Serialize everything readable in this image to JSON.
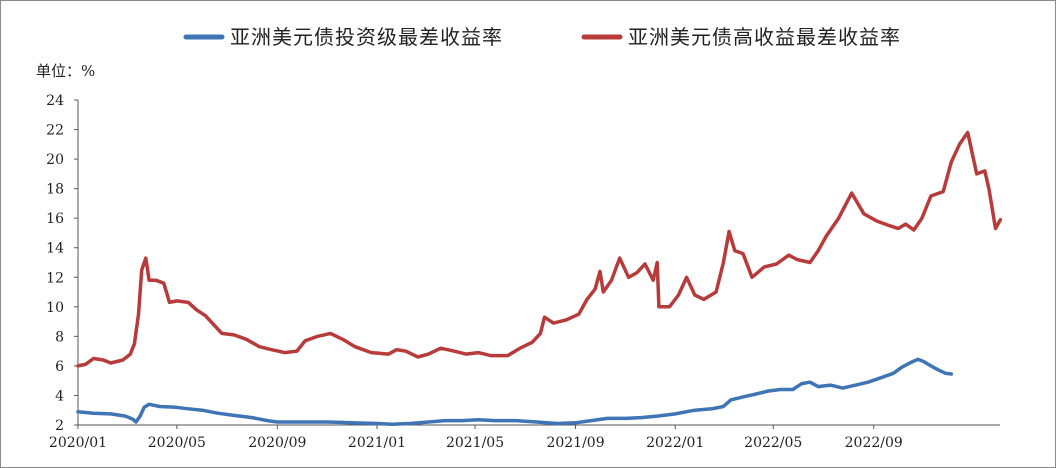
{
  "chart_data": {
    "type": "line",
    "ylabel": "单位：%",
    "ylim": [
      2,
      24
    ],
    "yticks": [
      2,
      4,
      6,
      8,
      10,
      12,
      14,
      16,
      18,
      20,
      22,
      24
    ],
    "xlim": [
      "2020/01",
      "2022/12"
    ],
    "xticks": [
      "2020/01",
      "2020/05",
      "2020/09",
      "2021/01",
      "2021/05",
      "2021/09",
      "2022/01",
      "2022/05",
      "2022/09"
    ],
    "grid": false,
    "legend_position": "top",
    "series": [
      {
        "name": "亚洲美元债投资级最差收益率",
        "color": "#3f74b5",
        "points": [
          [
            "2020/01/01",
            2.9
          ],
          [
            "2020/01/20",
            2.8
          ],
          [
            "2020/02/10",
            2.75
          ],
          [
            "2020/02/28",
            2.6
          ],
          [
            "2020/03/08",
            2.4
          ],
          [
            "2020/03/12",
            2.2
          ],
          [
            "2020/03/17",
            2.6
          ],
          [
            "2020/03/22",
            3.2
          ],
          [
            "2020/03/28",
            3.4
          ],
          [
            "2020/04/10",
            3.25
          ],
          [
            "2020/04/30",
            3.2
          ],
          [
            "2020/05/15",
            3.1
          ],
          [
            "2020/06/01",
            3.0
          ],
          [
            "2020/06/20",
            2.8
          ],
          [
            "2020/07/10",
            2.65
          ],
          [
            "2020/08/01",
            2.5
          ],
          [
            "2020/08/20",
            2.3
          ],
          [
            "2020/09/01",
            2.2
          ],
          [
            "2020/09/20",
            2.2
          ],
          [
            "2020/10/10",
            2.2
          ],
          [
            "2020/11/01",
            2.2
          ],
          [
            "2020/12/01",
            2.15
          ],
          [
            "2021/01/01",
            2.1
          ],
          [
            "2021/01/20",
            2.05
          ],
          [
            "2021/02/10",
            2.1
          ],
          [
            "2021/03/05",
            2.2
          ],
          [
            "2021/03/25",
            2.3
          ],
          [
            "2021/04/15",
            2.3
          ],
          [
            "2021/05/05",
            2.35
          ],
          [
            "2021/05/25",
            2.3
          ],
          [
            "2021/06/20",
            2.3
          ],
          [
            "2021/07/15",
            2.2
          ],
          [
            "2021/08/10",
            2.1
          ],
          [
            "2021/09/01",
            2.15
          ],
          [
            "2021/09/20",
            2.3
          ],
          [
            "2021/10/10",
            2.45
          ],
          [
            "2021/11/01",
            2.45
          ],
          [
            "2021/11/20",
            2.5
          ],
          [
            "2021/12/10",
            2.6
          ],
          [
            "2022/01/01",
            2.75
          ],
          [
            "2022/01/25",
            3.0
          ],
          [
            "2022/02/15",
            3.1
          ],
          [
            "2022/03/01",
            3.25
          ],
          [
            "2022/03/10",
            3.7
          ],
          [
            "2022/03/25",
            3.9
          ],
          [
            "2022/04/10",
            4.1
          ],
          [
            "2022/04/25",
            4.3
          ],
          [
            "2022/05/10",
            4.4
          ],
          [
            "2022/05/25",
            4.4
          ],
          [
            "2022/06/05",
            4.8
          ],
          [
            "2022/06/15",
            4.9
          ],
          [
            "2022/06/25",
            4.6
          ],
          [
            "2022/07/10",
            4.7
          ],
          [
            "2022/07/25",
            4.5
          ],
          [
            "2022/08/10",
            4.7
          ],
          [
            "2022/08/25",
            4.9
          ],
          [
            "2022/09/10",
            5.2
          ],
          [
            "2022/09/25",
            5.5
          ],
          [
            "2022/10/05",
            5.9
          ],
          [
            "2022/10/15",
            6.2
          ],
          [
            "2022/10/25",
            6.45
          ],
          [
            "2022/11/01",
            6.3
          ],
          [
            "2022/11/10",
            6.0
          ],
          [
            "2022/11/20",
            5.7
          ],
          [
            "2022/11/28",
            5.5
          ],
          [
            "2022/12/05",
            5.45
          ]
        ]
      },
      {
        "name": "亚洲美元债高收益最差收益率",
        "color": "#b83b3b",
        "points": [
          [
            "2020/01/01",
            6.0
          ],
          [
            "2020/01/10",
            6.1
          ],
          [
            "2020/01/20",
            6.5
          ],
          [
            "2020/02/01",
            6.4
          ],
          [
            "2020/02/10",
            6.2
          ],
          [
            "2020/02/25",
            6.4
          ],
          [
            "2020/03/05",
            6.8
          ],
          [
            "2020/03/10",
            7.5
          ],
          [
            "2020/03/15",
            9.5
          ],
          [
            "2020/03/19",
            12.5
          ],
          [
            "2020/03/24",
            13.3
          ],
          [
            "2020/03/28",
            11.8
          ],
          [
            "2020/04/05",
            11.8
          ],
          [
            "2020/04/15",
            11.6
          ],
          [
            "2020/04/22",
            10.3
          ],
          [
            "2020/05/01",
            10.4
          ],
          [
            "2020/05/15",
            10.3
          ],
          [
            "2020/05/25",
            9.8
          ],
          [
            "2020/06/05",
            9.4
          ],
          [
            "2020/06/15",
            8.8
          ],
          [
            "2020/06/25",
            8.2
          ],
          [
            "2020/07/10",
            8.1
          ],
          [
            "2020/07/25",
            7.8
          ],
          [
            "2020/08/10",
            7.3
          ],
          [
            "2020/08/25",
            7.1
          ],
          [
            "2020/09/10",
            6.9
          ],
          [
            "2020/09/25",
            7.0
          ],
          [
            "2020/10/05",
            7.7
          ],
          [
            "2020/10/20",
            8.0
          ],
          [
            "2020/11/05",
            8.2
          ],
          [
            "2020/11/20",
            7.8
          ],
          [
            "2020/12/05",
            7.3
          ],
          [
            "2020/12/25",
            6.9
          ],
          [
            "2021/01/15",
            6.8
          ],
          [
            "2021/01/25",
            7.1
          ],
          [
            "2021/02/05",
            7.0
          ],
          [
            "2021/02/20",
            6.6
          ],
          [
            "2021/03/05",
            6.8
          ],
          [
            "2021/03/20",
            7.2
          ],
          [
            "2021/04/05",
            7.0
          ],
          [
            "2021/04/20",
            6.8
          ],
          [
            "2021/05/05",
            6.9
          ],
          [
            "2021/05/20",
            6.7
          ],
          [
            "2021/06/10",
            6.7
          ],
          [
            "2021/06/25",
            7.2
          ],
          [
            "2021/07/10",
            7.6
          ],
          [
            "2021/07/20",
            8.2
          ],
          [
            "2021/07/25",
            9.3
          ],
          [
            "2021/08/05",
            8.9
          ],
          [
            "2021/08/20",
            9.1
          ],
          [
            "2021/09/05",
            9.5
          ],
          [
            "2021/09/15",
            10.5
          ],
          [
            "2021/09/25",
            11.2
          ],
          [
            "2021/10/01",
            12.4
          ],
          [
            "2021/10/05",
            11.0
          ],
          [
            "2021/10/15",
            11.8
          ],
          [
            "2021/10/25",
            13.3
          ],
          [
            "2021/11/05",
            12.0
          ],
          [
            "2021/11/15",
            12.3
          ],
          [
            "2021/11/25",
            12.9
          ],
          [
            "2021/12/05",
            11.8
          ],
          [
            "2021/12/10",
            13.0
          ],
          [
            "2021/12/12",
            10.0
          ],
          [
            "2021/12/25",
            10.0
          ],
          [
            "2022/01/05",
            10.8
          ],
          [
            "2022/01/15",
            12.0
          ],
          [
            "2022/01/25",
            10.8
          ],
          [
            "2022/02/05",
            10.5
          ],
          [
            "2022/02/20",
            11.0
          ],
          [
            "2022/03/01",
            13.0
          ],
          [
            "2022/03/08",
            15.1
          ],
          [
            "2022/03/15",
            13.8
          ],
          [
            "2022/03/25",
            13.6
          ],
          [
            "2022/04/05",
            12.0
          ],
          [
            "2022/04/20",
            12.7
          ],
          [
            "2022/05/05",
            12.9
          ],
          [
            "2022/05/20",
            13.5
          ],
          [
            "2022/05/30",
            13.2
          ],
          [
            "2022/06/15",
            13.0
          ],
          [
            "2022/06/25",
            13.8
          ],
          [
            "2022/07/05",
            14.8
          ],
          [
            "2022/07/20",
            16.0
          ],
          [
            "2022/08/05",
            17.7
          ],
          [
            "2022/08/20",
            16.3
          ],
          [
            "2022/09/05",
            15.8
          ],
          [
            "2022/09/20",
            15.5
          ],
          [
            "2022/10/01",
            15.3
          ],
          [
            "2022/10/10",
            15.6
          ],
          [
            "2022/10/20",
            15.2
          ],
          [
            "2022/10/30",
            16.0
          ],
          [
            "2022/11/10",
            17.5
          ],
          [
            "2022/11/25",
            17.8
          ],
          [
            "2022/12/05",
            19.8
          ],
          [
            "2022/12/15",
            21.0
          ],
          [
            "2022/12/25",
            21.8
          ],
          [
            "2023/01/05",
            19.0
          ],
          [
            "2023/01/15",
            19.2
          ],
          [
            "2023/01/20",
            18.0
          ],
          [
            "2023/01/28",
            15.3
          ],
          [
            "2023/02/03",
            15.9
          ]
        ]
      }
    ]
  }
}
